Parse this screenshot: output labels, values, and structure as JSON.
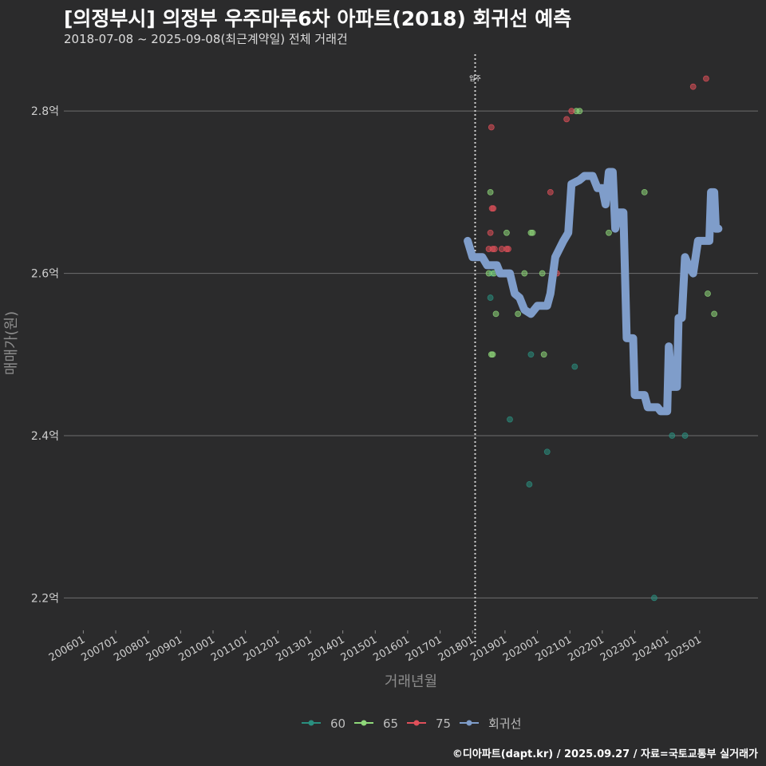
{
  "header": {
    "title": "[의정부시] 의정부 우주마루6차 아파트(2018) 회귀선 예측",
    "subtitle": "2018-07-08 ~ 2025-09-08(최근계약일) 전체 거래건"
  },
  "footer": {
    "caption": "©디아파트(dapt.kr) / 2025.09.27 / 자료=국토교통부 실거래가"
  },
  "colors": {
    "background": "#2b2b2c",
    "grid": "#6e6e6e",
    "s60": "#2a8f7f",
    "s65": "#8fd87a",
    "s75": "#e0505a",
    "regression": "#7f9dca"
  },
  "chart_data": {
    "type": "scatter",
    "xlabel": "거래년월",
    "ylabel": "매매가(원)",
    "ylim": [
      2.16,
      2.87
    ],
    "y_ticks": [
      {
        "v": 2.2,
        "label": "2.2억"
      },
      {
        "v": 2.4,
        "label": "2.4억"
      },
      {
        "v": 2.6,
        "label": "2.6억"
      },
      {
        "v": 2.8,
        "label": "2.8억"
      }
    ],
    "xlim": [
      2005.4,
      2026.8
    ],
    "x_ticks": [
      "200601",
      "200701",
      "200801",
      "200901",
      "201001",
      "201101",
      "201201",
      "201301",
      "201401",
      "201501",
      "201601",
      "201701",
      "201801",
      "201901",
      "202001",
      "202101",
      "202201",
      "202301",
      "202401",
      "202501"
    ],
    "annotation": {
      "label": "입주",
      "x": 2018.08
    },
    "legend": {
      "placement": "bottom",
      "entries": [
        {
          "key": "s60",
          "label": "60"
        },
        {
          "key": "s65",
          "label": "65"
        },
        {
          "key": "s75",
          "label": "75"
        },
        {
          "key": "regression",
          "label": "회귀선"
        }
      ]
    },
    "series": [
      {
        "name": "60",
        "key": "s60",
        "points": [
          [
            2018.55,
            2.57
          ],
          [
            2018.6,
            2.6
          ],
          [
            2019.15,
            2.42
          ],
          [
            2019.75,
            2.34
          ],
          [
            2019.8,
            2.5
          ],
          [
            2020.3,
            2.38
          ],
          [
            2021.15,
            2.485
          ],
          [
            2023.6,
            2.2
          ],
          [
            2024.15,
            2.4
          ],
          [
            2024.55,
            2.4
          ]
        ]
      },
      {
        "name": "65",
        "key": "s65",
        "points": [
          [
            2018.5,
            2.6
          ],
          [
            2018.55,
            2.7
          ],
          [
            2018.58,
            2.5
          ],
          [
            2018.62,
            2.5
          ],
          [
            2018.66,
            2.6
          ],
          [
            2018.72,
            2.55
          ],
          [
            2019.05,
            2.65
          ],
          [
            2019.4,
            2.55
          ],
          [
            2019.6,
            2.6
          ],
          [
            2019.8,
            2.65
          ],
          [
            2019.85,
            2.65
          ],
          [
            2020.15,
            2.6
          ],
          [
            2020.2,
            2.5
          ],
          [
            2021.2,
            2.8
          ],
          [
            2021.3,
            2.8
          ],
          [
            2022.2,
            2.65
          ],
          [
            2023.3,
            2.7
          ],
          [
            2025.25,
            2.575
          ],
          [
            2025.45,
            2.55
          ]
        ]
      },
      {
        "name": "75",
        "key": "s75",
        "points": [
          [
            2018.5,
            2.63
          ],
          [
            2018.55,
            2.65
          ],
          [
            2018.58,
            2.78
          ],
          [
            2018.6,
            2.68
          ],
          [
            2018.62,
            2.63
          ],
          [
            2018.64,
            2.68
          ],
          [
            2018.68,
            2.63
          ],
          [
            2018.9,
            2.63
          ],
          [
            2019.05,
            2.63
          ],
          [
            2019.1,
            2.63
          ],
          [
            2020.4,
            2.7
          ],
          [
            2020.6,
            2.6
          ],
          [
            2020.9,
            2.79
          ],
          [
            2021.05,
            2.8
          ],
          [
            2024.8,
            2.83
          ],
          [
            2025.2,
            2.84
          ]
        ]
      },
      {
        "name": "회귀선",
        "key": "regression",
        "line": [
          [
            2017.85,
            2.64
          ],
          [
            2018.0,
            2.62
          ],
          [
            2018.3,
            2.62
          ],
          [
            2018.45,
            2.61
          ],
          [
            2018.75,
            2.61
          ],
          [
            2018.85,
            2.6
          ],
          [
            2019.15,
            2.6
          ],
          [
            2019.3,
            2.575
          ],
          [
            2019.45,
            2.57
          ],
          [
            2019.6,
            2.555
          ],
          [
            2019.8,
            2.55
          ],
          [
            2020.0,
            2.56
          ],
          [
            2020.3,
            2.56
          ],
          [
            2020.4,
            2.575
          ],
          [
            2020.55,
            2.62
          ],
          [
            2020.8,
            2.64
          ],
          [
            2020.95,
            2.65
          ],
          [
            2021.05,
            2.71
          ],
          [
            2021.3,
            2.715
          ],
          [
            2021.45,
            2.72
          ],
          [
            2021.7,
            2.72
          ],
          [
            2021.85,
            2.705
          ],
          [
            2022.0,
            2.705
          ],
          [
            2022.1,
            2.685
          ],
          [
            2022.2,
            2.725
          ],
          [
            2022.32,
            2.725
          ],
          [
            2022.4,
            2.655
          ],
          [
            2022.5,
            2.675
          ],
          [
            2022.65,
            2.675
          ],
          [
            2022.75,
            2.52
          ],
          [
            2022.95,
            2.52
          ],
          [
            2023.0,
            2.45
          ],
          [
            2023.3,
            2.45
          ],
          [
            2023.4,
            2.435
          ],
          [
            2023.7,
            2.435
          ],
          [
            2023.8,
            2.43
          ],
          [
            2024.0,
            2.43
          ],
          [
            2024.05,
            2.51
          ],
          [
            2024.15,
            2.46
          ],
          [
            2024.3,
            2.46
          ],
          [
            2024.35,
            2.545
          ],
          [
            2024.45,
            2.545
          ],
          [
            2024.55,
            2.62
          ],
          [
            2024.65,
            2.61
          ],
          [
            2024.8,
            2.6
          ],
          [
            2024.95,
            2.64
          ],
          [
            2025.3,
            2.64
          ],
          [
            2025.35,
            2.7
          ],
          [
            2025.45,
            2.7
          ],
          [
            2025.5,
            2.655
          ],
          [
            2025.58,
            2.655
          ]
        ]
      }
    ]
  }
}
